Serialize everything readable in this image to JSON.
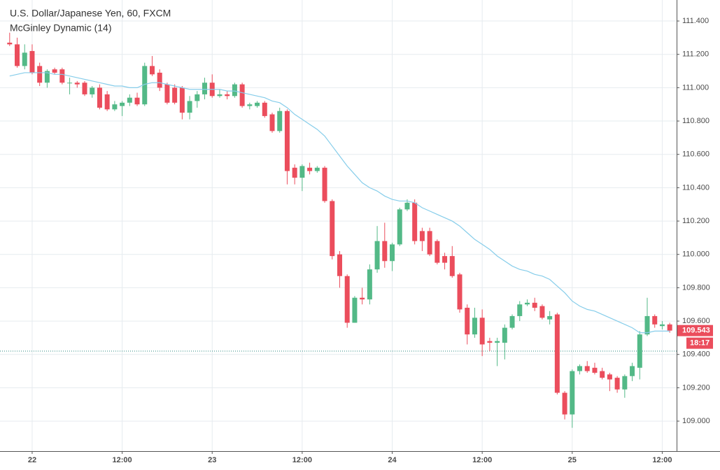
{
  "chart_data": {
    "type": "candlestick",
    "title": "U.S. Dollar/Japanese Yen, 60, FXCM",
    "categories": [
      null,
      null,
      null,
      "22",
      null,
      null,
      null,
      null,
      null,
      null,
      null,
      null,
      null,
      null,
      null,
      "12:00",
      null,
      null,
      null,
      null,
      null,
      null,
      null,
      null,
      null,
      null,
      null,
      "23",
      null,
      null,
      null,
      null,
      null,
      null,
      null,
      null,
      null,
      null,
      null,
      "12:00",
      null,
      null,
      null,
      null,
      null,
      null,
      null,
      null,
      null,
      null,
      null,
      "24",
      null,
      null,
      null,
      null,
      null,
      null,
      null,
      null,
      null,
      null,
      null,
      "12:00",
      null,
      null,
      null,
      null,
      null,
      null,
      null,
      null,
      null,
      null,
      null,
      "25",
      null,
      null,
      null,
      null,
      null,
      null,
      null,
      null,
      null,
      null,
      null,
      "12:00",
      null
    ],
    "open": [
      111.27,
      111.26,
      111.13,
      111.22,
      111.13,
      111.03,
      111.11,
      111.11,
      111.03,
      111.03,
      111.03,
      110.96,
      111.0,
      110.96,
      110.87,
      110.89,
      110.91,
      110.94,
      110.9,
      111.13,
      111.09,
      111.02,
      111.0,
      111.0,
      110.85,
      110.92,
      110.96,
      111.03,
      110.95,
      110.96,
      110.95,
      111.02,
      110.89,
      110.89,
      110.91,
      110.84,
      110.74,
      110.86,
      110.52,
      110.46,
      110.52,
      110.5,
      110.52,
      110.32,
      110.0,
      109.87,
      109.59,
      109.74,
      109.73,
      109.91,
      110.08,
      109.96,
      110.06,
      110.27,
      110.31,
      110.14,
      110.14,
      110.08,
      109.99,
      109.99,
      109.88,
      109.68,
      109.52,
      109.62,
      109.48,
      109.47,
      109.47,
      109.56,
      109.63,
      109.7,
      109.71,
      109.69,
      109.61,
      109.64,
      109.17,
      109.04,
      109.3,
      109.33,
      109.32,
      109.3,
      109.28,
      109.26,
      109.19,
      109.27,
      109.32,
      109.52,
      109.63,
      109.57,
      109.58
    ],
    "high": [
      111.33,
      111.3,
      111.26,
      111.26,
      111.15,
      111.11,
      111.12,
      111.12,
      111.06,
      111.04,
      111.04,
      111.01,
      111.02,
      110.98,
      110.92,
      110.92,
      110.96,
      110.97,
      111.15,
      111.19,
      111.11,
      111.03,
      111.02,
      111.01,
      110.95,
      110.98,
      111.06,
      111.08,
      110.99,
      110.98,
      111.03,
      111.03,
      110.91,
      110.92,
      110.92,
      110.85,
      110.88,
      110.87,
      110.54,
      110.54,
      110.55,
      110.53,
      110.53,
      110.33,
      110.02,
      109.88,
      109.75,
      109.8,
      109.94,
      110.17,
      110.19,
      110.07,
      110.28,
      110.33,
      110.33,
      110.16,
      110.16,
      110.09,
      110.01,
      110.05,
      109.89,
      109.7,
      109.68,
      109.67,
      109.5,
      109.5,
      109.58,
      109.64,
      109.72,
      109.73,
      109.74,
      109.7,
      109.66,
      109.65,
      109.18,
      109.31,
      109.34,
      109.36,
      109.35,
      109.32,
      109.29,
      109.27,
      109.28,
      109.35,
      109.54,
      109.74,
      109.64,
      109.6,
      109.59
    ],
    "low": [
      111.25,
      111.12,
      111.11,
      111.08,
      111.01,
      111.0,
      111.08,
      111.02,
      110.96,
      111.0,
      110.95,
      110.94,
      110.87,
      110.86,
      110.86,
      110.83,
      110.89,
      110.89,
      110.89,
      111.07,
      110.98,
      110.9,
      110.9,
      110.81,
      110.81,
      110.88,
      110.93,
      110.94,
      110.94,
      110.93,
      110.94,
      110.88,
      110.87,
      110.88,
      110.82,
      110.73,
      110.73,
      110.42,
      110.42,
      110.38,
      110.48,
      110.49,
      110.31,
      109.97,
      109.8,
      109.56,
      109.59,
      109.7,
      109.7,
      109.89,
      109.92,
      109.9,
      110.05,
      110.26,
      110.06,
      110.02,
      109.99,
      109.94,
      109.91,
      109.86,
      109.65,
      109.46,
      109.5,
      109.39,
      109.42,
      109.33,
      109.37,
      109.55,
      109.6,
      109.69,
      109.66,
      109.61,
      109.58,
      109.16,
      109.01,
      108.96,
      109.28,
      109.29,
      109.28,
      109.25,
      109.18,
      109.17,
      109.14,
      109.24,
      109.25,
      109.51,
      109.56,
      109.55,
      109.53
    ],
    "close": [
      111.26,
      111.13,
      111.21,
      111.09,
      111.03,
      111.1,
      111.09,
      111.03,
      111.03,
      111.02,
      110.96,
      111.0,
      110.88,
      110.87,
      110.9,
      110.91,
      110.94,
      110.9,
      111.13,
      111.08,
      111.0,
      110.91,
      110.91,
      110.85,
      110.92,
      110.96,
      111.03,
      110.95,
      110.96,
      110.95,
      111.02,
      110.89,
      110.9,
      110.91,
      110.83,
      110.74,
      110.86,
      110.5,
      110.46,
      110.53,
      110.5,
      110.52,
      110.32,
      109.99,
      109.87,
      109.59,
      109.74,
      109.73,
      109.91,
      110.08,
      109.96,
      110.06,
      110.27,
      110.31,
      110.08,
      110.08,
      110.0,
      109.95,
      109.95,
      109.87,
      109.67,
      109.52,
      109.62,
      109.46,
      109.47,
      109.48,
      109.56,
      109.63,
      109.7,
      109.71,
      109.68,
      109.62,
      109.63,
      109.17,
      109.04,
      109.3,
      109.33,
      109.3,
      109.29,
      109.26,
      109.25,
      109.19,
      109.27,
      109.33,
      109.52,
      109.63,
      109.58,
      109.58,
      109.543
    ],
    "up_color": "#53b987",
    "down_color": "#eb4d5c",
    "series": [
      {
        "name": "McGinley Dynamic (14)",
        "color": "#86cdea",
        "values": [
          111.07,
          111.08,
          111.09,
          111.09,
          111.09,
          111.09,
          111.08,
          111.08,
          111.07,
          111.06,
          111.05,
          111.04,
          111.03,
          111.02,
          111.01,
          111.01,
          111.0,
          111.0,
          111.02,
          111.03,
          111.03,
          111.02,
          111.01,
          111.0,
          110.99,
          110.99,
          110.99,
          110.99,
          110.99,
          110.98,
          110.98,
          110.97,
          110.96,
          110.95,
          110.94,
          110.92,
          110.91,
          110.88,
          110.84,
          110.81,
          110.78,
          110.75,
          110.71,
          110.65,
          110.59,
          110.53,
          110.48,
          110.43,
          110.4,
          110.38,
          110.35,
          110.33,
          110.32,
          110.32,
          110.31,
          110.28,
          110.26,
          110.24,
          110.22,
          110.2,
          110.17,
          110.13,
          110.09,
          110.06,
          110.03,
          109.99,
          109.96,
          109.93,
          109.91,
          109.9,
          109.88,
          109.87,
          109.85,
          109.81,
          109.77,
          109.72,
          109.69,
          109.67,
          109.66,
          109.64,
          109.62,
          109.6,
          109.58,
          109.56,
          109.53,
          109.53,
          109.54,
          109.54,
          109.54
        ]
      }
    ],
    "ylim": [
      108.82,
      111.526
    ],
    "yticks": [
      {
        "value": 109.0,
        "label": "109.000"
      },
      {
        "value": 109.2,
        "label": "109.200"
      },
      {
        "value": 109.4,
        "label": "109.400"
      },
      {
        "value": 109.6,
        "label": "109.600"
      },
      {
        "value": 109.8,
        "label": "109.800"
      },
      {
        "value": 110.0,
        "label": "110.000"
      },
      {
        "value": 110.2,
        "label": "110.200"
      },
      {
        "value": 110.4,
        "label": "110.400"
      },
      {
        "value": 110.6,
        "label": "110.600"
      },
      {
        "value": 110.8,
        "label": "110.800"
      },
      {
        "value": 111.0,
        "label": "111.000"
      },
      {
        "value": 111.2,
        "label": "111.200"
      },
      {
        "value": 111.4,
        "label": "111.400"
      }
    ],
    "grid": true,
    "reference_line": 109.42,
    "reference_color": "#2a8a80",
    "last_price": 109.543,
    "countdown": "18:17"
  }
}
